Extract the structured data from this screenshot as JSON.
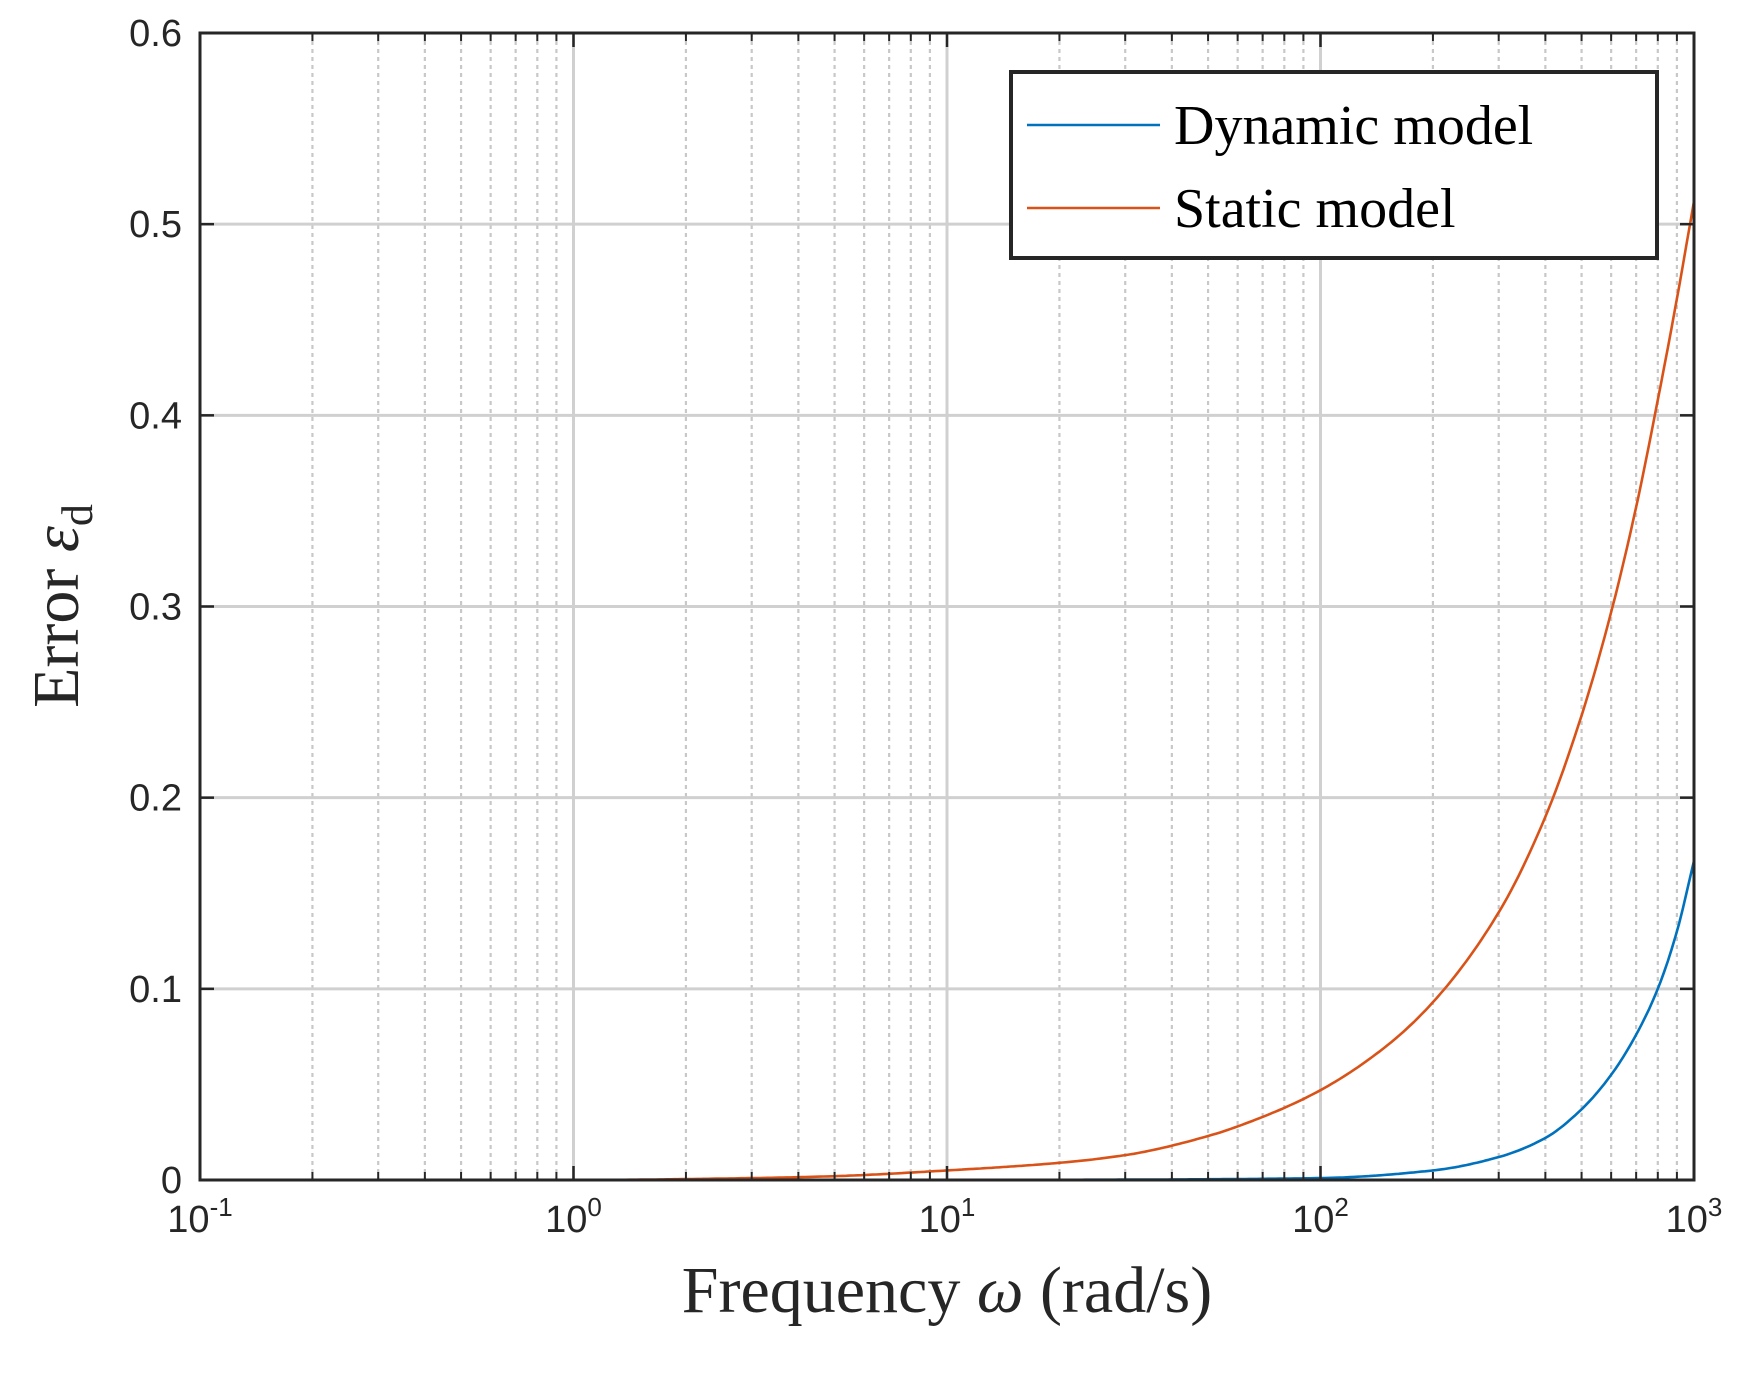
{
  "chart_data": {
    "type": "line",
    "title": "",
    "xlabel": {
      "prefix": "Frequency ",
      "symbol": "ω",
      "suffix": " (rad/s)"
    },
    "ylabel": {
      "prefix": "Error ",
      "symbol": "ε",
      "subscript": "d"
    },
    "xscale": "log",
    "xlim": [
      0.1,
      1000
    ],
    "ylim": [
      0,
      0.6
    ],
    "xticks": [
      {
        "base": "10",
        "exp": "-1"
      },
      {
        "base": "10",
        "exp": "0"
      },
      {
        "base": "10",
        "exp": "1"
      },
      {
        "base": "10",
        "exp": "2"
      },
      {
        "base": "10",
        "exp": "3"
      }
    ],
    "xtick_values": [
      0.1,
      1,
      10,
      100,
      1000
    ],
    "yticks": [
      "0",
      "0.1",
      "0.2",
      "0.3",
      "0.4",
      "0.5",
      "0.6"
    ],
    "ytick_values": [
      0,
      0.1,
      0.2,
      0.3,
      0.4,
      0.5,
      0.6
    ],
    "grid": true,
    "minor_grid": true,
    "legend_position": "top-right",
    "series": [
      {
        "name": "Dynamic model",
        "color": "#0072BD",
        "x": [
          0.1,
          1,
          10,
          30,
          100,
          200,
          300,
          400,
          500,
          600,
          700,
          800,
          900,
          1000
        ],
        "y": [
          0,
          0,
          0,
          0.0002,
          0.001,
          0.005,
          0.012,
          0.022,
          0.037,
          0.055,
          0.076,
          0.1,
          0.13,
          0.167
        ]
      },
      {
        "name": "Static model",
        "color": "#D95319",
        "x": [
          0.1,
          1,
          3,
          5,
          10,
          20,
          30,
          50,
          70,
          100,
          150,
          200,
          300,
          400,
          500,
          600,
          700,
          800,
          900,
          1000
        ],
        "y": [
          0,
          0,
          0.001,
          0.002,
          0.005,
          0.009,
          0.013,
          0.023,
          0.033,
          0.047,
          0.07,
          0.093,
          0.14,
          0.19,
          0.243,
          0.297,
          0.352,
          0.408,
          0.461,
          0.512
        ]
      }
    ]
  }
}
